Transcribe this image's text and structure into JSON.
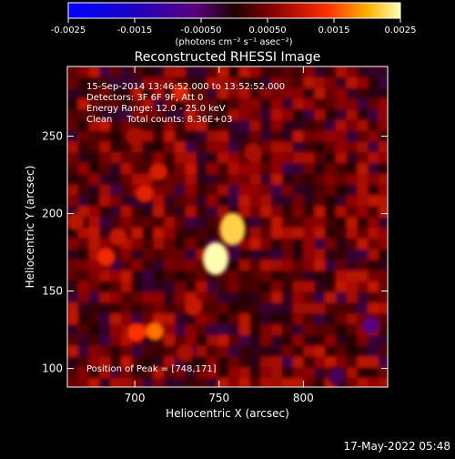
{
  "chart_data": {
    "type": "heatmap",
    "title": "Reconstructed RHESSI Image",
    "xlabel": "Heliocentric X (arcsec)",
    "ylabel": "Heliocentric Y (arcsec)",
    "x_ticks": [
      "700",
      "750",
      "800"
    ],
    "y_ticks": [
      "100",
      "150",
      "200",
      "250"
    ],
    "xlim": [
      660,
      850
    ],
    "ylim": [
      88,
      295
    ],
    "colorbar": {
      "ticks": [
        "-0.0025",
        "-0.0015",
        "-0.00050",
        "0.00050",
        "0.0015",
        "0.0025"
      ],
      "range": [
        -0.0025,
        0.0025
      ],
      "unit_label": "(photons cm⁻² s⁻¹ asec⁻²)"
    },
    "annotations": [
      "15-Sep-2014 13:46:52.000 to 13:52:52.000",
      "Detectors: 3F 6F 9F, Att 0",
      "Energy Range: 12.0 - 25.0 keV",
      "Clean     Total counts: 8.36E+03"
    ],
    "peak_label": "Position of Peak = [748,171]",
    "sources": [
      {
        "x": 748,
        "y": 171,
        "value": 0.0025
      },
      {
        "x": 758,
        "y": 190,
        "value": 0.0022
      },
      {
        "x": 712,
        "y": 124,
        "value": 0.0017
      },
      {
        "x": 701,
        "y": 123,
        "value": 0.0014
      },
      {
        "x": 683,
        "y": 172,
        "value": 0.0013
      },
      {
        "x": 706,
        "y": 213,
        "value": 0.0012
      },
      {
        "x": 714,
        "y": 227,
        "value": 0.0011
      },
      {
        "x": 727,
        "y": 278,
        "value": 0.0012
      },
      {
        "x": 735,
        "y": 140,
        "value": 0.001
      },
      {
        "x": 690,
        "y": 185,
        "value": 0.001
      },
      {
        "x": 665,
        "y": 195,
        "value": 0.0009
      },
      {
        "x": 770,
        "y": 240,
        "value": 0.0008
      },
      {
        "x": 700,
        "y": 250,
        "value": 0.0008
      },
      {
        "x": 730,
        "y": 110,
        "value": 0.0008
      },
      {
        "x": 840,
        "y": 128,
        "value": -0.0006
      },
      {
        "x": 820,
        "y": 95,
        "value": -0.0004
      }
    ]
  },
  "footer": {
    "date": "17-May-2022 05:48"
  }
}
